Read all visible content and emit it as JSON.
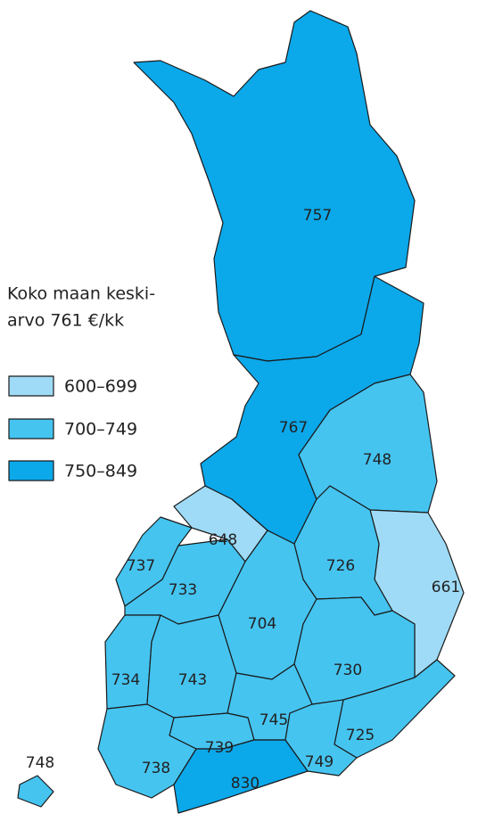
{
  "legend": {
    "title": [
      "Koko maan keski-",
      "arvo 761 €/kk"
    ],
    "items": [
      {
        "from": 600,
        "to": 699,
        "label": "600–699",
        "color": "#9fdbf6"
      },
      {
        "from": 700,
        "to": 749,
        "label": "700–749",
        "color": "#45c4f0"
      },
      {
        "from": 750,
        "to": 849,
        "label": "750–849",
        "color": "#0ba8ea"
      }
    ]
  },
  "regions": [
    {
      "value": 757
    },
    {
      "value": 767
    },
    {
      "value": 748
    },
    {
      "value": 661
    },
    {
      "value": 726
    },
    {
      "value": 648
    },
    {
      "value": 737
    },
    {
      "value": 733
    },
    {
      "value": 704
    },
    {
      "value": 730
    },
    {
      "value": 734
    },
    {
      "value": 743
    },
    {
      "value": 745
    },
    {
      "value": 739
    },
    {
      "value": 725
    },
    {
      "value": 749
    },
    {
      "value": 830
    },
    {
      "value": 738
    },
    {
      "value": 748
    }
  ]
}
